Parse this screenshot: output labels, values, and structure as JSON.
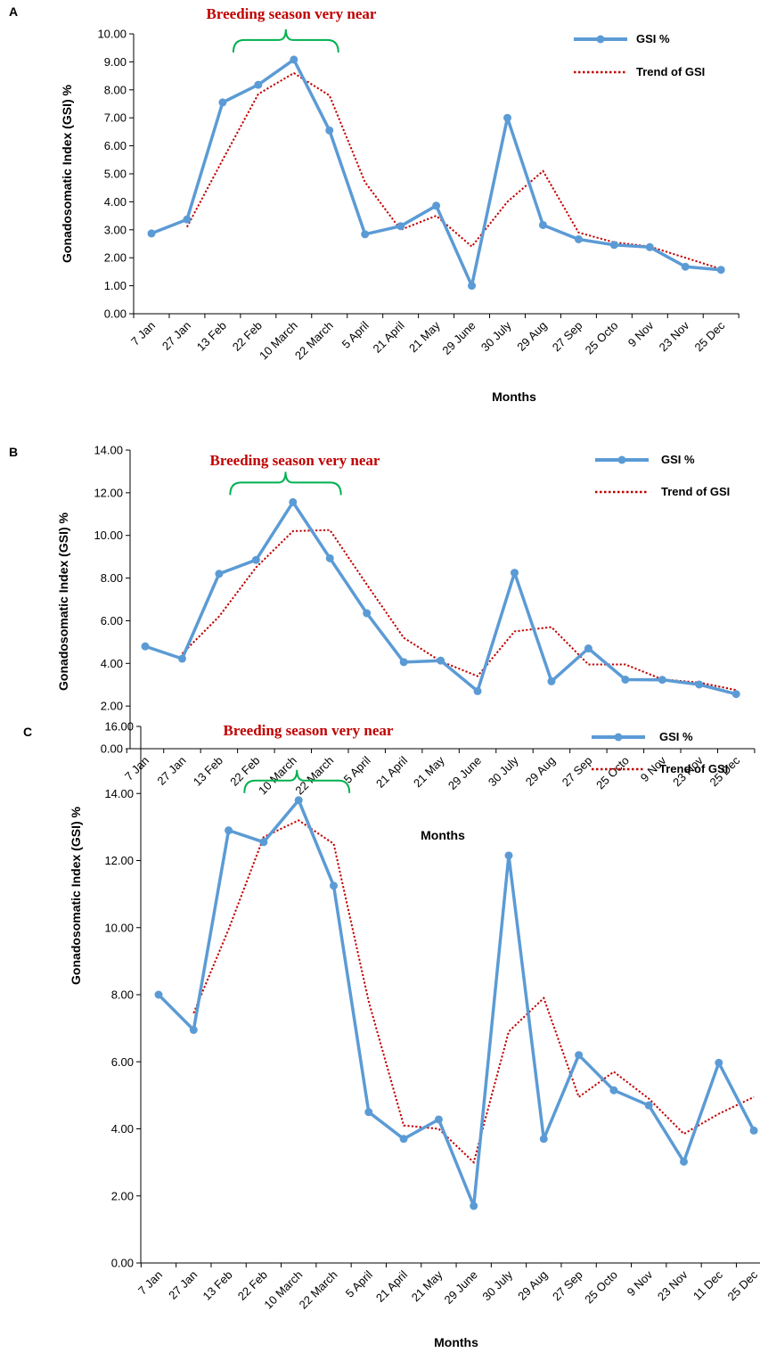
{
  "chart_data": [
    {
      "panel": "A",
      "type": "line",
      "annotation": "Breeding season very near",
      "ylabel": "Gonadosomatic Index (GSI) %",
      "xlabel": "Months",
      "ylim": [
        0,
        10
      ],
      "yticks": [
        "0.00",
        "1.00",
        "2.00",
        "3.00",
        "4.00",
        "5.00",
        "6.00",
        "7.00",
        "8.00",
        "9.00",
        "10.00"
      ],
      "categories": [
        "7 Jan",
        "27 Jan",
        "13 Feb",
        "22 Feb",
        "10 March",
        "22 March",
        "5 April",
        "21 April",
        "21 May",
        "29 June",
        "30 July",
        "29 Aug",
        "27 Sep",
        "25 Octo",
        "9 Nov",
        "23 Nov",
        "25 Dec"
      ],
      "series": [
        {
          "name": "GSI %",
          "values": [
            2.87,
            3.37,
            7.55,
            8.18,
            9.08,
            6.55,
            2.84,
            3.13,
            3.86,
            1.0,
            7.0,
            3.17,
            2.66,
            2.46,
            2.38,
            1.68,
            1.57
          ]
        },
        {
          "name": "Trend of GSI",
          "values": [
            null,
            3.1,
            5.5,
            7.85,
            8.6,
            7.8,
            4.7,
            3.0,
            3.5,
            2.4,
            4.0,
            5.1,
            2.9,
            2.55,
            2.4,
            2.0,
            1.6
          ]
        }
      ],
      "brace_from": 2.3,
      "brace_to": 5.25
    },
    {
      "panel": "B",
      "type": "line",
      "annotation": "Breeding season very near",
      "ylabel": "Gonadosomatic Index (GSI)  %",
      "xlabel": "Months",
      "ylim": [
        0,
        14
      ],
      "yticks": [
        "0.00",
        "2.00",
        "4.00",
        "6.00",
        "8.00",
        "10.00",
        "12.00",
        "14.00"
      ],
      "categories": [
        "7 Jan",
        "27 Jan",
        "13 Feb",
        "22 Feb",
        "10 March",
        "22 March",
        "5 April",
        "21 April",
        "21 May",
        "29 June",
        "30 July",
        "29 Aug",
        "27 Sep",
        "25 Octo",
        "9 Nov",
        "23 Nov",
        "25 Dec"
      ],
      "series": [
        {
          "name": "GSI %",
          "values": [
            4.8,
            4.22,
            8.2,
            8.85,
            11.56,
            8.93,
            6.35,
            4.06,
            4.13,
            2.7,
            8.25,
            3.16,
            4.7,
            3.24,
            3.23,
            3.01,
            2.56
          ]
        },
        {
          "name": "Trend of GSI",
          "values": [
            null,
            4.45,
            6.2,
            8.5,
            10.2,
            10.25,
            7.7,
            5.2,
            4.1,
            3.4,
            5.5,
            5.7,
            3.95,
            3.95,
            3.25,
            3.1,
            2.75
          ]
        }
      ],
      "brace_from": 2.3,
      "brace_to": 5.3
    },
    {
      "panel": "C",
      "type": "line",
      "annotation": "Breeding season very near",
      "ylabel": "Gonadosomatic Index (GSI) %",
      "xlabel": "Months",
      "ylim": [
        0,
        16
      ],
      "yticks": [
        "0.00",
        "2.00",
        "4.00",
        "6.00",
        "8.00",
        "10.00",
        "12.00",
        "14.00",
        "16.00"
      ],
      "categories": [
        "7 Jan",
        "27 Jan",
        "13 Feb",
        "22 Feb",
        "10 March",
        "22 March",
        "5 April",
        "21 April",
        "21 May",
        "29 June",
        "30 July",
        "29 Aug",
        "27 Sep",
        "25 Octo",
        "9 Nov",
        "23 Nov",
        "11 Dec",
        "25 Dec"
      ],
      "series": [
        {
          "name": "GSI %",
          "values": [
            8.0,
            6.95,
            12.9,
            12.55,
            13.8,
            11.25,
            4.5,
            3.7,
            4.28,
            1.7,
            12.15,
            3.7,
            6.2,
            5.15,
            4.7,
            3.02,
            5.97,
            3.95
          ]
        },
        {
          "name": "Trend of GSI",
          "values": [
            null,
            7.45,
            9.95,
            12.7,
            13.2,
            12.5,
            7.8,
            4.1,
            4.0,
            3.0,
            6.9,
            7.9,
            4.95,
            5.7,
            4.9,
            3.85,
            4.45,
            4.95
          ]
        }
      ],
      "brace_from": 2.45,
      "brace_to": 5.45
    }
  ],
  "colors": {
    "gsi_line": "#5b9bd5",
    "trend_line": "#c00000",
    "brace": "#00b050",
    "annotation": "#c00000",
    "axis": "#000000"
  }
}
